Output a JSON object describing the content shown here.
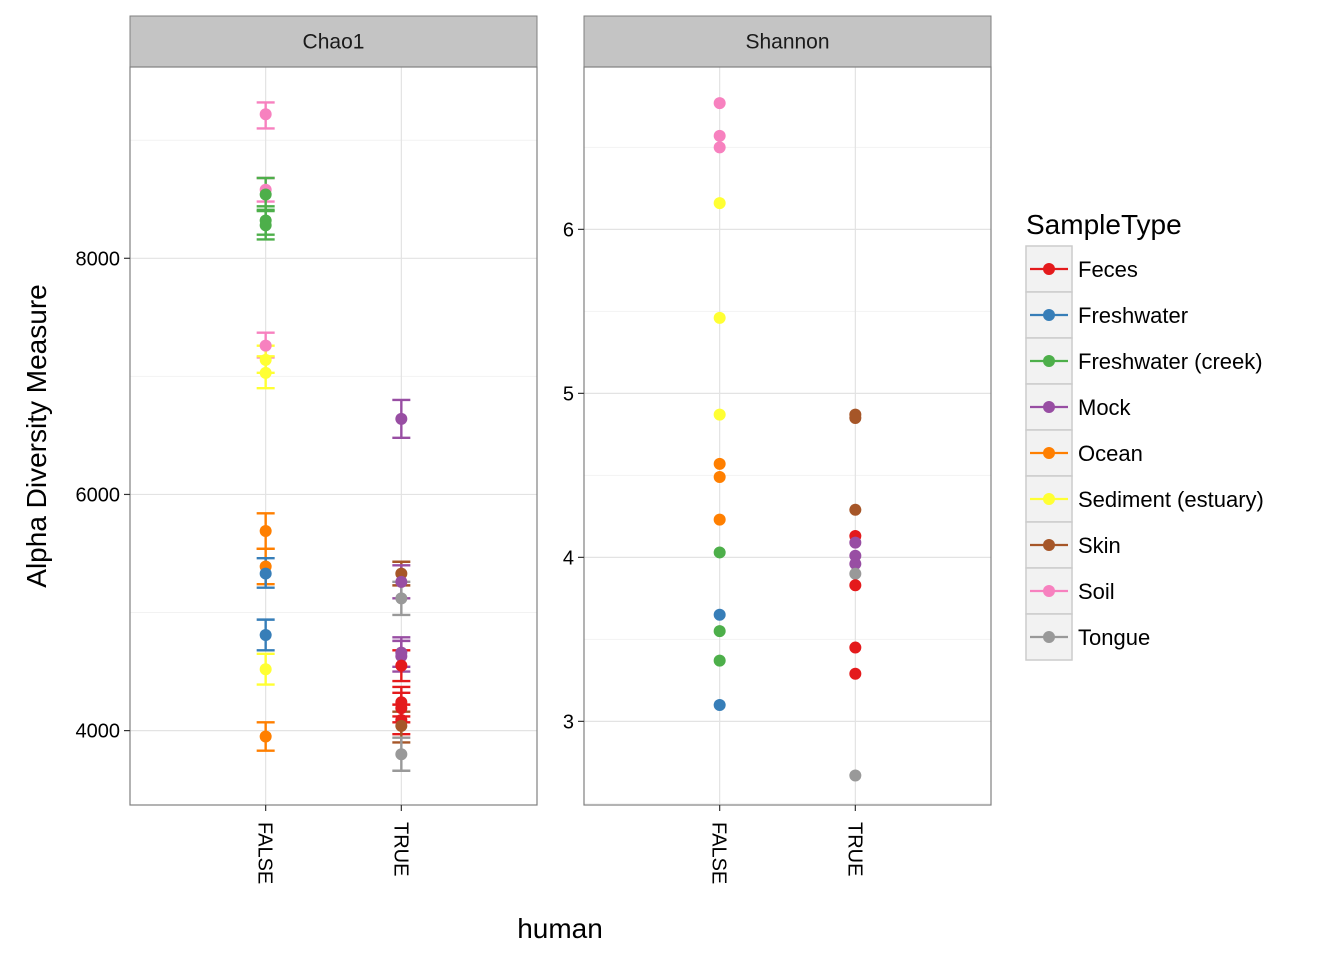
{
  "chart_data": {
    "type": "scatter",
    "ylabel": "Alpha Diversity Measure",
    "xlabel": "human",
    "categories": [
      "FALSE",
      "TRUE"
    ],
    "legend": {
      "title": "SampleType",
      "position": "right",
      "items": [
        {
          "name": "Feces",
          "color": "#E41A1C"
        },
        {
          "name": "Freshwater",
          "color": "#377EB8"
        },
        {
          "name": "Freshwater (creek)",
          "color": "#4DAF4A"
        },
        {
          "name": "Mock",
          "color": "#984EA3"
        },
        {
          "name": "Ocean",
          "color": "#FF7F00"
        },
        {
          "name": "Sediment (estuary)",
          "color": "#FFFF33"
        },
        {
          "name": "Skin",
          "color": "#A65628"
        },
        {
          "name": "Soil",
          "color": "#F781BF"
        },
        {
          "name": "Tongue",
          "color": "#999999"
        }
      ]
    },
    "panels": [
      {
        "strip": "Chao1",
        "ylim": [
          3370,
          9620
        ],
        "yticks": [
          4000,
          6000,
          8000
        ],
        "yticklabels": [
          "4000",
          "6000",
          "8000"
        ],
        "grid": true,
        "points": [
          {
            "x": "FALSE",
            "type": "Soil",
            "y": 9220,
            "ymin": 9100,
            "ymax": 9320
          },
          {
            "x": "FALSE",
            "type": "Soil",
            "y": 8580,
            "ymin": 8480,
            "ymax": 8680
          },
          {
            "x": "FALSE",
            "type": "Freshwater (creek)",
            "y": 8540,
            "ymin": 8410,
            "ymax": 8680
          },
          {
            "x": "FALSE",
            "type": "Freshwater (creek)",
            "y": 8320,
            "ymin": 8200,
            "ymax": 8440
          },
          {
            "x": "FALSE",
            "type": "Freshwater (creek)",
            "y": 8280,
            "ymin": 8160,
            "ymax": 8400
          },
          {
            "x": "FALSE",
            "type": "Soil",
            "y": 7260,
            "ymin": 7160,
            "ymax": 7370
          },
          {
            "x": "FALSE",
            "type": "Sediment (estuary)",
            "y": 7140,
            "ymin": 7030,
            "ymax": 7260
          },
          {
            "x": "FALSE",
            "type": "Sediment (estuary)",
            "y": 7030,
            "ymin": 6900,
            "ymax": 7170
          },
          {
            "x": "FALSE",
            "type": "Ocean",
            "y": 5690,
            "ymin": 5540,
            "ymax": 5840
          },
          {
            "x": "FALSE",
            "type": "Ocean",
            "y": 5390,
            "ymin": 5240,
            "ymax": 5540
          },
          {
            "x": "FALSE",
            "type": "Freshwater",
            "y": 5330,
            "ymin": 5210,
            "ymax": 5460
          },
          {
            "x": "FALSE",
            "type": "Freshwater",
            "y": 4810,
            "ymin": 4680,
            "ymax": 4940
          },
          {
            "x": "FALSE",
            "type": "Sediment (estuary)",
            "y": 4520,
            "ymin": 4390,
            "ymax": 4650
          },
          {
            "x": "FALSE",
            "type": "Ocean",
            "y": 3950,
            "ymin": 3830,
            "ymax": 4070
          },
          {
            "x": "TRUE",
            "type": "Mock",
            "y": 6640,
            "ymin": 6480,
            "ymax": 6800
          },
          {
            "x": "TRUE",
            "type": "Skin",
            "y": 5330,
            "ymin": 5230,
            "ymax": 5430
          },
          {
            "x": "TRUE",
            "type": "Mock",
            "y": 5260,
            "ymin": 5120,
            "ymax": 5400
          },
          {
            "x": "TRUE",
            "type": "Tongue",
            "y": 5120,
            "ymin": 4980,
            "ymax": 5260
          },
          {
            "x": "TRUE",
            "type": "Mock",
            "y": 4660,
            "ymin": 4540,
            "ymax": 4790
          },
          {
            "x": "TRUE",
            "type": "Mock",
            "y": 4630,
            "ymin": 4500,
            "ymax": 4760
          },
          {
            "x": "TRUE",
            "type": "Feces",
            "y": 4550,
            "ymin": 4420,
            "ymax": 4680
          },
          {
            "x": "TRUE",
            "type": "Feces",
            "y": 4240,
            "ymin": 4120,
            "ymax": 4370
          },
          {
            "x": "TRUE",
            "type": "Feces",
            "y": 4190,
            "ymin": 4070,
            "ymax": 4320
          },
          {
            "x": "TRUE",
            "type": "Feces",
            "y": 4090,
            "ymin": 3970,
            "ymax": 4220
          },
          {
            "x": "TRUE",
            "type": "Skin",
            "y": 4040,
            "ymin": 3900,
            "ymax": 4160
          },
          {
            "x": "TRUE",
            "type": "Tongue",
            "y": 3800,
            "ymin": 3660,
            "ymax": 3940
          }
        ]
      },
      {
        "strip": "Shannon",
        "ylim": [
          2.49,
          6.99
        ],
        "yticks": [
          3,
          4,
          5,
          6
        ],
        "yticklabels": [
          "3",
          "4",
          "5",
          "6"
        ],
        "grid": true,
        "points": [
          {
            "x": "FALSE",
            "type": "Soil",
            "y": 6.77
          },
          {
            "x": "FALSE",
            "type": "Soil",
            "y": 6.57
          },
          {
            "x": "FALSE",
            "type": "Soil",
            "y": 6.5
          },
          {
            "x": "FALSE",
            "type": "Sediment (estuary)",
            "y": 6.16
          },
          {
            "x": "FALSE",
            "type": "Sediment (estuary)",
            "y": 5.46
          },
          {
            "x": "FALSE",
            "type": "Sediment (estuary)",
            "y": 4.87
          },
          {
            "x": "FALSE",
            "type": "Ocean",
            "y": 4.57
          },
          {
            "x": "FALSE",
            "type": "Ocean",
            "y": 4.49
          },
          {
            "x": "FALSE",
            "type": "Ocean",
            "y": 4.23
          },
          {
            "x": "FALSE",
            "type": "Freshwater (creek)",
            "y": 4.03
          },
          {
            "x": "FALSE",
            "type": "Freshwater",
            "y": 3.65
          },
          {
            "x": "FALSE",
            "type": "Freshwater (creek)",
            "y": 3.55
          },
          {
            "x": "FALSE",
            "type": "Freshwater (creek)",
            "y": 3.37
          },
          {
            "x": "FALSE",
            "type": "Freshwater",
            "y": 3.1
          },
          {
            "x": "TRUE",
            "type": "Skin",
            "y": 4.87
          },
          {
            "x": "TRUE",
            "type": "Skin",
            "y": 4.85
          },
          {
            "x": "TRUE",
            "type": "Skin",
            "y": 4.29
          },
          {
            "x": "TRUE",
            "type": "Feces",
            "y": 4.13
          },
          {
            "x": "TRUE",
            "type": "Mock",
            "y": 4.09
          },
          {
            "x": "TRUE",
            "type": "Mock",
            "y": 4.01
          },
          {
            "x": "TRUE",
            "type": "Mock",
            "y": 3.96
          },
          {
            "x": "TRUE",
            "type": "Tongue",
            "y": 3.9
          },
          {
            "x": "TRUE",
            "type": "Feces",
            "y": 3.83
          },
          {
            "x": "TRUE",
            "type": "Feces",
            "y": 3.45
          },
          {
            "x": "TRUE",
            "type": "Feces",
            "y": 3.29
          },
          {
            "x": "TRUE",
            "type": "Tongue",
            "y": 2.67
          }
        ]
      }
    ]
  }
}
